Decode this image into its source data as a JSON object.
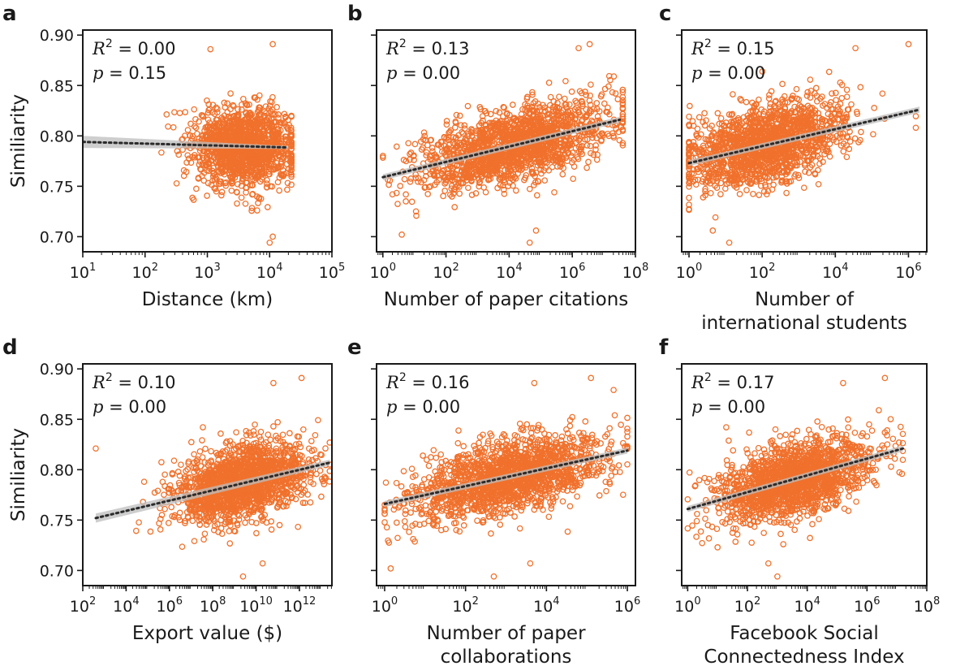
{
  "colors": {
    "points": "#f0712c",
    "trend": "#2b2b2b",
    "band": "#bdbdbd",
    "axis": "#1a1a1a"
  },
  "stat_labels": {
    "r2_lhs": "R",
    "r2_sup": "2",
    "p_lhs": "p"
  },
  "chart_data": [
    {
      "letter": "a",
      "type": "scatter",
      "x_scale": "log",
      "xlabel": [
        "Distance (km)"
      ],
      "ylabel": "Similiarity",
      "xlim_exp": [
        1,
        5
      ],
      "x_tick_exps": [
        1,
        2,
        3,
        4,
        5
      ],
      "ylim": [
        0.685,
        0.905
      ],
      "y_ticks": [
        "0.90",
        "0.85",
        "0.80",
        "0.75",
        "0.70"
      ],
      "r2": "0.00",
      "p": "0.15",
      "trend": {
        "x_exp": [
          1,
          4.3
        ],
        "y": [
          0.794,
          0.7885
        ],
        "band_start": 0.006,
        "band_end": 0.0015
      },
      "cloud": {
        "center_exp": 3.6,
        "spread_exp": 0.42,
        "min_exp": 2.25,
        "max_exp": 4.35,
        "y_spread": 0.019,
        "n": 1400
      },
      "outliers": [
        [
          4.05,
          0.891
        ],
        [
          3.05,
          0.886
        ],
        [
          4.0,
          0.694
        ],
        [
          4.05,
          0.7
        ],
        [
          3.8,
          0.726
        ]
      ]
    },
    {
      "letter": "b",
      "type": "scatter",
      "x_scale": "log",
      "xlabel": [
        "Number of paper citations"
      ],
      "ylabel": "",
      "xlim_exp": [
        -0.2,
        8
      ],
      "x_tick_exps": [
        0,
        2,
        4,
        6,
        8
      ],
      "ylim": [
        0.685,
        0.905
      ],
      "y_ticks": [
        "",
        "",
        "",
        "",
        ""
      ],
      "r2": "0.13",
      "p": "0.00",
      "trend": {
        "x_exp": [
          0,
          7.5
        ],
        "y": [
          0.759,
          0.816
        ],
        "band_start": 0.003,
        "band_end": 0.003
      },
      "cloud": {
        "center_exp": 4.2,
        "spread_exp": 1.45,
        "min_exp": 0,
        "max_exp": 7.6,
        "y_spread": 0.018,
        "n": 1700
      },
      "outliers": [
        [
          6.55,
          0.891
        ],
        [
          6.2,
          0.887
        ],
        [
          4.65,
          0.694
        ],
        [
          0.6,
          0.702
        ],
        [
          4.85,
          0.706
        ]
      ]
    },
    {
      "letter": "c",
      "type": "scatter",
      "x_scale": "log",
      "xlabel": [
        "Number of",
        "international students"
      ],
      "ylabel": "",
      "xlim_exp": [
        -0.2,
        6.5
      ],
      "x_tick_exps": [
        0,
        2,
        4,
        6
      ],
      "ylim": [
        0.685,
        0.905
      ],
      "y_ticks": [
        "",
        "",
        "",
        "",
        ""
      ],
      "r2": "0.15",
      "p": "0.00",
      "trend": {
        "x_exp": [
          0,
          6.3
        ],
        "y": [
          0.773,
          0.826
        ],
        "band_start": 0.003,
        "band_end": 0.003
      },
      "cloud": {
        "center_exp": 2.1,
        "spread_exp": 1.1,
        "min_exp": 0,
        "max_exp": 6.2,
        "y_spread": 0.019,
        "n": 1600
      },
      "outliers": [
        [
          6.0,
          0.891
        ],
        [
          4.55,
          0.887
        ],
        [
          1.1,
          0.694
        ],
        [
          0.65,
          0.706
        ]
      ]
    },
    {
      "letter": "d",
      "type": "scatter",
      "x_scale": "log",
      "xlabel": [
        "Export value ($)"
      ],
      "ylabel": "Similiarity",
      "xlim_exp": [
        2,
        13.5
      ],
      "x_tick_exps": [
        2,
        4,
        6,
        8,
        10,
        12
      ],
      "ylim": [
        0.685,
        0.905
      ],
      "y_ticks": [
        "0.90",
        "0.85",
        "0.80",
        "0.75",
        "0.70"
      ],
      "r2": "0.10",
      "p": "0.00",
      "trend": {
        "x_exp": [
          2.6,
          13.4
        ],
        "y": [
          0.752,
          0.807
        ],
        "band_start": 0.0045,
        "band_end": 0.003
      },
      "cloud": {
        "center_exp": 9.3,
        "spread_exp": 1.55,
        "min_exp": 3.5,
        "max_exp": 13.4,
        "y_spread": 0.018,
        "n": 1700
      },
      "outliers": [
        [
          12.1,
          0.891
        ],
        [
          10.8,
          0.886
        ],
        [
          9.4,
          0.694
        ],
        [
          10.3,
          0.707
        ],
        [
          2.6,
          0.821
        ]
      ]
    },
    {
      "letter": "e",
      "type": "scatter",
      "x_scale": "log",
      "xlabel": [
        "Number of paper",
        "collaborations"
      ],
      "ylabel": "",
      "xlim_exp": [
        -0.2,
        6.2
      ],
      "x_tick_exps": [
        0,
        2,
        4,
        6
      ],
      "ylim": [
        0.685,
        0.905
      ],
      "y_ticks": [
        "",
        "",
        "",
        "",
        ""
      ],
      "r2": "0.16",
      "p": "0.00",
      "trend": {
        "x_exp": [
          0,
          6.0
        ],
        "y": [
          0.766,
          0.819
        ],
        "band_start": 0.003,
        "band_end": 0.003
      },
      "cloud": {
        "center_exp": 3.1,
        "spread_exp": 1.2,
        "min_exp": 0,
        "max_exp": 6.0,
        "y_spread": 0.018,
        "n": 1700
      },
      "outliers": [
        [
          5.1,
          0.891
        ],
        [
          3.7,
          0.886
        ],
        [
          2.7,
          0.694
        ],
        [
          0.15,
          0.702
        ],
        [
          3.6,
          0.707
        ]
      ]
    },
    {
      "letter": "f",
      "type": "scatter",
      "x_scale": "log",
      "xlabel": [
        "Facebook Social",
        "Connectedness Index"
      ],
      "ylabel": "",
      "xlim_exp": [
        -0.2,
        8
      ],
      "x_tick_exps": [
        0,
        2,
        4,
        6,
        8
      ],
      "ylim": [
        0.685,
        0.905
      ],
      "y_ticks": [
        "",
        "",
        "",
        "",
        ""
      ],
      "r2": "0.17",
      "p": "0.00",
      "trend": {
        "x_exp": [
          0,
          7.2
        ],
        "y": [
          0.761,
          0.821
        ],
        "band_start": 0.003,
        "band_end": 0.003
      },
      "cloud": {
        "center_exp": 3.6,
        "spread_exp": 1.25,
        "min_exp": 0,
        "max_exp": 7.2,
        "y_spread": 0.018,
        "n": 1700
      },
      "outliers": [
        [
          6.6,
          0.891
        ],
        [
          5.2,
          0.886
        ],
        [
          3.0,
          0.694
        ],
        [
          2.7,
          0.707
        ],
        [
          3.2,
          0.726
        ]
      ]
    }
  ]
}
